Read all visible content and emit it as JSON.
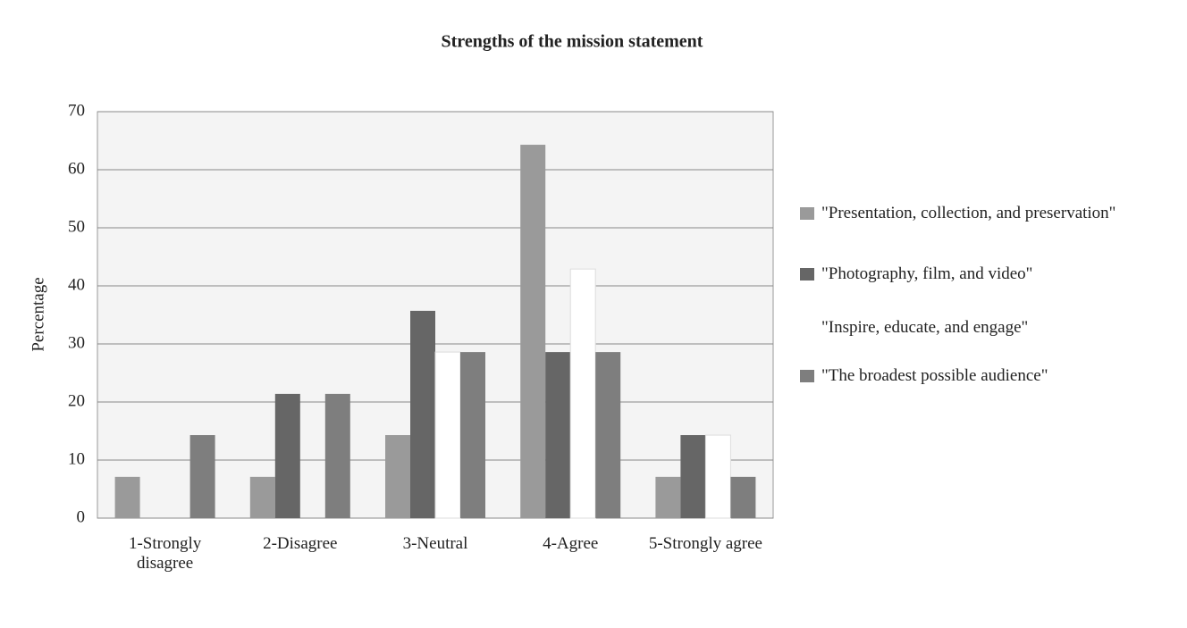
{
  "chart_data": {
    "type": "bar",
    "title": "Strengths of the mission statement",
    "y_label": "Percentage",
    "categories": [
      "1-Strongly disagree",
      "2-Disagree",
      "3-Neutral",
      "4-Agree",
      "5-Strongly agree"
    ],
    "series": [
      {
        "name": "\"Presentation, collection, and preservation\"",
        "color": "#9a9a9a",
        "values": [
          7.1,
          7.1,
          14.3,
          64.3,
          7.1
        ]
      },
      {
        "name": "\"Photography, film, and video\"",
        "color": "#666666",
        "values": [
          0,
          21.4,
          35.7,
          28.6,
          14.3
        ]
      },
      {
        "name": "\"Inspire, educate, and engage\"",
        "color": "#ffffff",
        "values": [
          0,
          0,
          28.6,
          42.9,
          14.3
        ]
      },
      {
        "name": "\"The broadest possible audience\"",
        "color": "#7e7e7e",
        "values": [
          14.3,
          21.4,
          28.6,
          28.6,
          7.1
        ]
      }
    ],
    "ylim": [
      0,
      70
    ],
    "yticks": [
      0,
      10,
      20,
      30,
      40,
      50,
      60,
      70
    ],
    "grid": true
  }
}
